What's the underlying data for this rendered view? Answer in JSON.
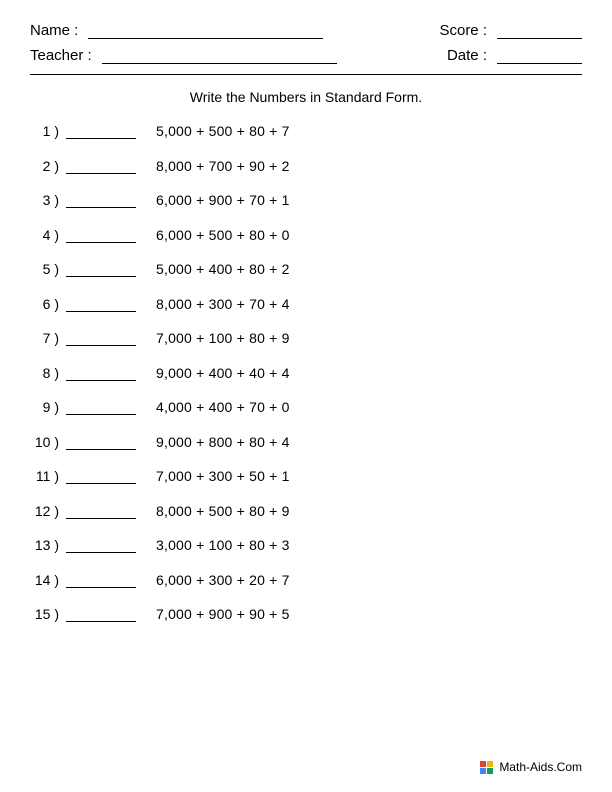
{
  "header": {
    "name_label": "Name :",
    "teacher_label": "Teacher :",
    "score_label": "Score :",
    "date_label": "Date :"
  },
  "instruction": "Write the Numbers in Standard Form.",
  "problems": [
    {
      "num": "1 )",
      "expr": "5,000  +  500  +  80  +  7"
    },
    {
      "num": "2 )",
      "expr": "8,000  +  700  +  90  +  2"
    },
    {
      "num": "3 )",
      "expr": "6,000  +  900  +  70  +  1"
    },
    {
      "num": "4 )",
      "expr": "6,000  +  500  +  80  +  0"
    },
    {
      "num": "5 )",
      "expr": "5,000  +  400  +  80  +  2"
    },
    {
      "num": "6 )",
      "expr": "8,000  +  300  +  70  +  4"
    },
    {
      "num": "7 )",
      "expr": "7,000  +  100  +  80  +  9"
    },
    {
      "num": "8 )",
      "expr": "9,000  +  400  +  40  +  4"
    },
    {
      "num": "9 )",
      "expr": "4,000  +  400  +  70  +  0"
    },
    {
      "num": "10 )",
      "expr": "9,000  +  800  +  80  +  4"
    },
    {
      "num": "11 )",
      "expr": "7,000  +  300  +  50  +  1"
    },
    {
      "num": "12 )",
      "expr": "8,000  +  500  +  80  +  9"
    },
    {
      "num": "13 )",
      "expr": "3,000  +  100  +  80  +  3"
    },
    {
      "num": "14 )",
      "expr": "6,000  +  300  +  20  +  7"
    },
    {
      "num": "15 )",
      "expr": "7,000  +  900  +  90  +  5"
    }
  ],
  "footer": {
    "text": "Math-Aids.Com"
  },
  "colors": {
    "background": "#ffffff",
    "text": "#000000",
    "line": "#000000"
  }
}
